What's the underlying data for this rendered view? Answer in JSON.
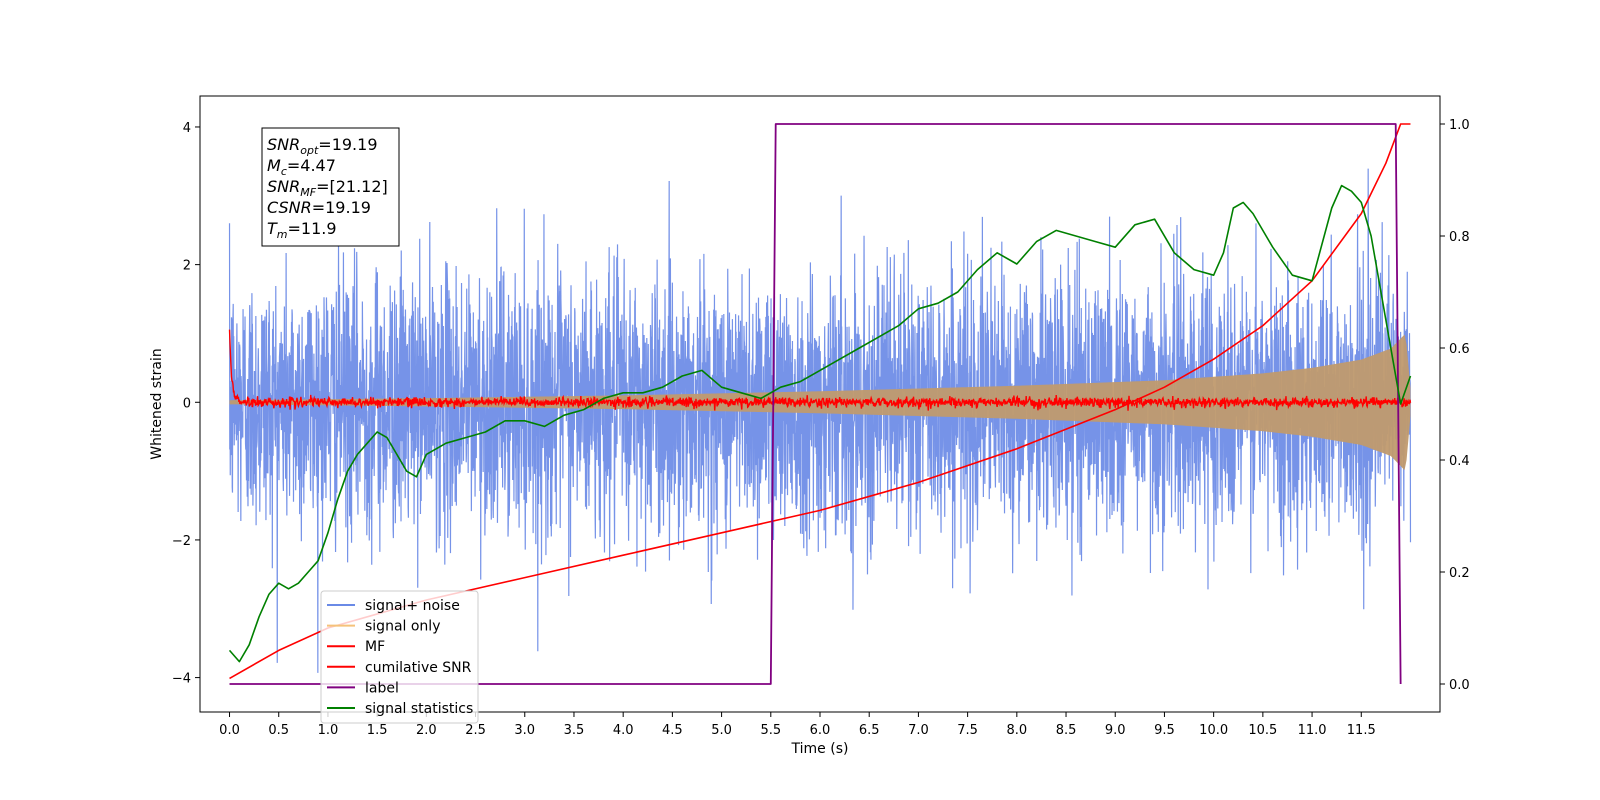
{
  "chart_data": {
    "type": "line",
    "xlabel": "Time (s)",
    "ylabel": "Whitened strain",
    "xlim": [
      -0.3,
      12.3
    ],
    "ylim": [
      -4.5,
      4.45
    ],
    "ylim_right": [
      -0.05,
      1.05
    ],
    "x_ticks": [
      0.0,
      0.5,
      1.0,
      1.5,
      2.0,
      2.5,
      3.0,
      3.5,
      4.0,
      4.5,
      5.0,
      5.5,
      6.0,
      6.5,
      7.0,
      7.5,
      8.0,
      8.5,
      9.0,
      9.5,
      10.0,
      10.5,
      11.0,
      11.5
    ],
    "x_tick_labels": [
      "0.0",
      "0.5",
      "1.0",
      "1.5",
      "2.0",
      "2.5",
      "3.0",
      "3.5",
      "4.0",
      "4.5",
      "5.0",
      "5.5",
      "6.0",
      "6.5",
      "7.0",
      "7.5",
      "8.0",
      "8.5",
      "9.0",
      "9.5",
      "10.0",
      "10.5",
      "11.0",
      "11.5"
    ],
    "y_ticks": [
      -4,
      -2,
      0,
      2,
      4
    ],
    "y_tick_labels": [
      "−4",
      "−2",
      "0",
      "2",
      "4"
    ],
    "y_right_ticks": [
      0.0,
      0.2,
      0.4,
      0.6,
      0.8,
      1.0
    ],
    "y_right_tick_labels": [
      "0.0",
      "0.2",
      "0.4",
      "0.6",
      "0.8",
      "1.0"
    ],
    "grid": false,
    "legend_position": "lower-left",
    "annotation": {
      "lines": [
        {
          "sym": "SNR",
          "sub": "opt",
          "val": "=19.19"
        },
        {
          "sym": "M",
          "sub": "c",
          "val": "=4.47"
        },
        {
          "sym": "SNR",
          "sub": "MF",
          "val": "=[21.12]"
        },
        {
          "sym": "CSNR",
          "sub": "",
          "val": "=19.19"
        },
        {
          "sym": "T",
          "sub": "m",
          "val": "=11.9"
        }
      ]
    },
    "series": [
      {
        "name": "signal+ noise",
        "axis": "left",
        "color": "#6a8ae6",
        "kind": "noise-band",
        "x_range": [
          0.0,
          12.0
        ],
        "typical_range": [
          -1.5,
          1.5
        ],
        "extremes": [
          -4.2,
          4.05
        ]
      },
      {
        "name": "signal only",
        "axis": "left",
        "color": "#f5c27a",
        "kind": "chirp-envelope",
        "x_range": [
          0.0,
          12.0
        ],
        "envelope": {
          "x": [
            0.0,
            2.0,
            4.0,
            6.0,
            8.0,
            9.5,
            10.5,
            11.0,
            11.5,
            11.8,
            11.95,
            12.0
          ],
          "y": [
            0.03,
            0.06,
            0.1,
            0.16,
            0.24,
            0.32,
            0.42,
            0.5,
            0.62,
            0.78,
            1.0,
            0.2
          ]
        }
      },
      {
        "name": "MF",
        "axis": "left",
        "color": "#ff0000",
        "kind": "noisy-baseline",
        "x": [
          0.0,
          0.02,
          0.05,
          0.1,
          12.0
        ],
        "y": [
          1.0,
          0.4,
          0.1,
          0.0,
          0.0
        ],
        "noise_amplitude": 0.05
      },
      {
        "name": "cumilative SNR",
        "axis": "right",
        "color": "#ff0000",
        "x": [
          0.0,
          0.5,
          1.0,
          2.0,
          3.0,
          4.0,
          5.0,
          6.0,
          7.0,
          8.0,
          9.0,
          9.5,
          10.0,
          10.5,
          11.0,
          11.5,
          11.75,
          11.9,
          12.0
        ],
        "y": [
          0.01,
          0.06,
          0.1,
          0.15,
          0.19,
          0.23,
          0.27,
          0.31,
          0.36,
          0.42,
          0.49,
          0.53,
          0.58,
          0.64,
          0.72,
          0.84,
          0.93,
          1.0,
          1.0
        ]
      },
      {
        "name": "label",
        "axis": "right",
        "color": "#800080",
        "x": [
          0.0,
          5.5,
          5.55,
          11.85,
          11.9
        ],
        "y": [
          0.0,
          0.0,
          1.0,
          1.0,
          0.0
        ]
      },
      {
        "name": "signal statistics",
        "axis": "right",
        "color": "#008000",
        "x": [
          0.0,
          0.1,
          0.2,
          0.3,
          0.4,
          0.5,
          0.6,
          0.7,
          0.8,
          0.9,
          1.0,
          1.1,
          1.2,
          1.3,
          1.4,
          1.5,
          1.6,
          1.7,
          1.8,
          1.9,
          2.0,
          2.2,
          2.4,
          2.6,
          2.8,
          3.0,
          3.2,
          3.4,
          3.6,
          3.8,
          4.0,
          4.2,
          4.4,
          4.6,
          4.8,
          5.0,
          5.2,
          5.4,
          5.6,
          5.8,
          6.0,
          6.2,
          6.4,
          6.6,
          6.8,
          7.0,
          7.2,
          7.4,
          7.6,
          7.8,
          8.0,
          8.2,
          8.4,
          8.6,
          8.8,
          9.0,
          9.2,
          9.4,
          9.6,
          9.8,
          10.0,
          10.1,
          10.2,
          10.3,
          10.4,
          10.6,
          10.8,
          11.0,
          11.2,
          11.3,
          11.4,
          11.5,
          11.6,
          11.7,
          11.8,
          11.9,
          12.0
        ],
        "y": [
          0.06,
          0.04,
          0.07,
          0.12,
          0.16,
          0.18,
          0.17,
          0.18,
          0.2,
          0.22,
          0.27,
          0.33,
          0.38,
          0.41,
          0.43,
          0.45,
          0.44,
          0.41,
          0.38,
          0.37,
          0.41,
          0.43,
          0.44,
          0.45,
          0.47,
          0.47,
          0.46,
          0.48,
          0.49,
          0.51,
          0.52,
          0.52,
          0.53,
          0.55,
          0.56,
          0.53,
          0.52,
          0.51,
          0.53,
          0.54,
          0.56,
          0.58,
          0.6,
          0.62,
          0.64,
          0.67,
          0.68,
          0.7,
          0.74,
          0.77,
          0.75,
          0.79,
          0.81,
          0.8,
          0.79,
          0.78,
          0.82,
          0.83,
          0.77,
          0.74,
          0.73,
          0.77,
          0.85,
          0.86,
          0.84,
          0.78,
          0.73,
          0.72,
          0.85,
          0.89,
          0.88,
          0.86,
          0.8,
          0.7,
          0.6,
          0.5,
          0.55
        ]
      }
    ]
  }
}
